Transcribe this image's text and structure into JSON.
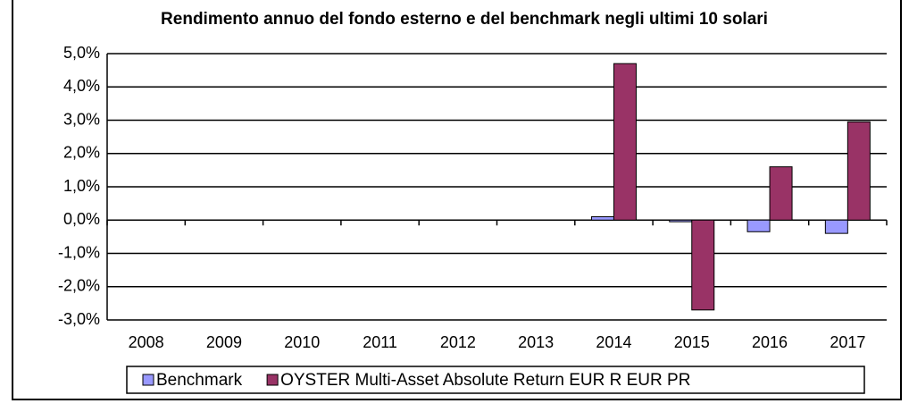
{
  "chart_data": {
    "type": "bar",
    "title": "Rendimento annuo del fondo esterno e del benchmark negli ultimi 10 solari",
    "categories": [
      "2008",
      "2009",
      "2010",
      "2011",
      "2012",
      "2013",
      "2014",
      "2015",
      "2016",
      "2017"
    ],
    "series": [
      {
        "name": "Benchmark",
        "color": "#9999ff",
        "values": [
          null,
          null,
          null,
          null,
          null,
          null,
          0.1,
          -0.05,
          -0.35,
          -0.4
        ]
      },
      {
        "name": "OYSTER Multi-Asset Absolute Return EUR R EUR PR",
        "color": "#993366",
        "values": [
          null,
          null,
          null,
          null,
          null,
          null,
          4.7,
          -2.7,
          1.6,
          2.95
        ]
      }
    ],
    "ylim": [
      -3,
      5
    ],
    "yticks": [
      {
        "value": -3,
        "label": "-3,0%"
      },
      {
        "value": -2,
        "label": "-2,0%"
      },
      {
        "value": -1,
        "label": "-1,0%"
      },
      {
        "value": 0,
        "label": "0,0%"
      },
      {
        "value": 1,
        "label": "1,0%"
      },
      {
        "value": 2,
        "label": "2,0%"
      },
      {
        "value": 3,
        "label": "3,0%"
      },
      {
        "value": 4,
        "label": "4,0%"
      },
      {
        "value": 5,
        "label": "5,0%"
      }
    ],
    "grid": true,
    "legend": "bottom"
  }
}
